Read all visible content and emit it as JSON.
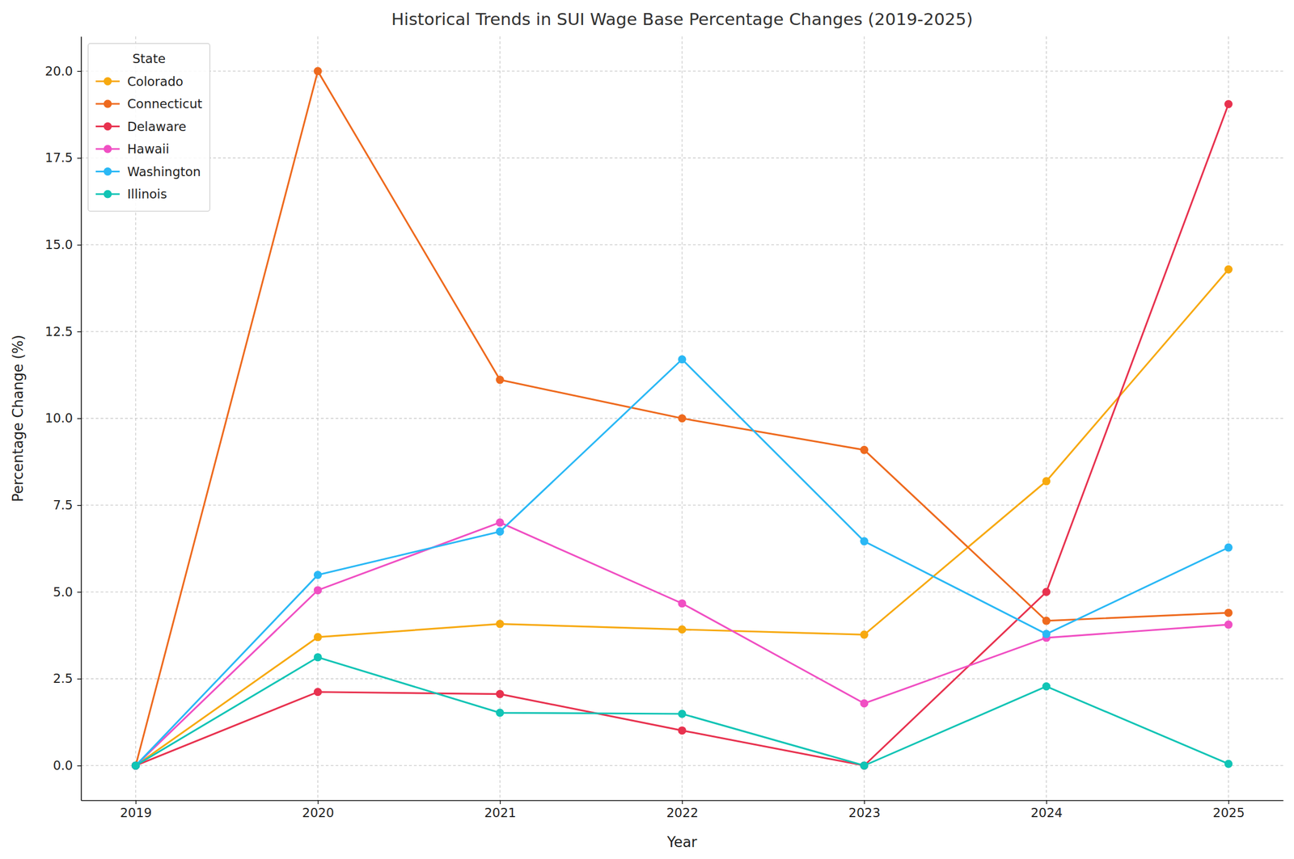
{
  "chart_data": {
    "type": "line",
    "title": "Historical Trends in SUI Wage Base Percentage Changes (2019-2025)",
    "x_label": "Year",
    "y_label": "Percentage Change (%)",
    "legend_title": "State",
    "legend": "upper left",
    "grid": true,
    "marker": "circle",
    "line_style": "solid",
    "x": [
      2019,
      2020,
      2021,
      2022,
      2023,
      2024,
      2025
    ],
    "xlim": [
      2018.7,
      2025.3
    ],
    "xticks": [
      2019,
      2020,
      2021,
      2022,
      2023,
      2024,
      2025
    ],
    "ylim": [
      -1.0,
      21.0
    ],
    "yticks": [
      {
        "value": 0,
        "label": "0.0"
      },
      {
        "value": 2.5,
        "label": "2.5"
      },
      {
        "value": 5,
        "label": "5.0"
      },
      {
        "value": 7.5,
        "label": "7.5"
      },
      {
        "value": 10,
        "label": "10.0"
      },
      {
        "value": 12.5,
        "label": "12.5"
      },
      {
        "value": 15,
        "label": "15.0"
      },
      {
        "value": 17.5,
        "label": "17.5"
      },
      {
        "value": 20,
        "label": "20.0"
      }
    ],
    "series": [
      {
        "name": "Colorado",
        "color": "#f7a90f",
        "values": [
          0,
          3.7,
          4.08,
          3.92,
          3.77,
          8.19,
          14.29
        ]
      },
      {
        "name": "Connecticut",
        "color": "#ee6a1e",
        "values": [
          0,
          20.0,
          11.11,
          10.0,
          9.09,
          4.17,
          4.4
        ]
      },
      {
        "name": "Delaware",
        "color": "#e8324f",
        "values": [
          0,
          2.12,
          2.06,
          1.01,
          0,
          5.0,
          19.05
        ]
      },
      {
        "name": "Hawaii",
        "color": "#f04fc3",
        "values": [
          0,
          5.05,
          7.0,
          4.67,
          1.79,
          3.68,
          4.06
        ]
      },
      {
        "name": "Washington",
        "color": "#2ab8f5",
        "values": [
          0,
          5.49,
          6.74,
          11.7,
          6.46,
          3.79,
          6.28
        ]
      },
      {
        "name": "Illinois",
        "color": "#11c4b5",
        "values": [
          0,
          3.12,
          1.52,
          1.49,
          0,
          2.28,
          0.05
        ]
      }
    ]
  }
}
